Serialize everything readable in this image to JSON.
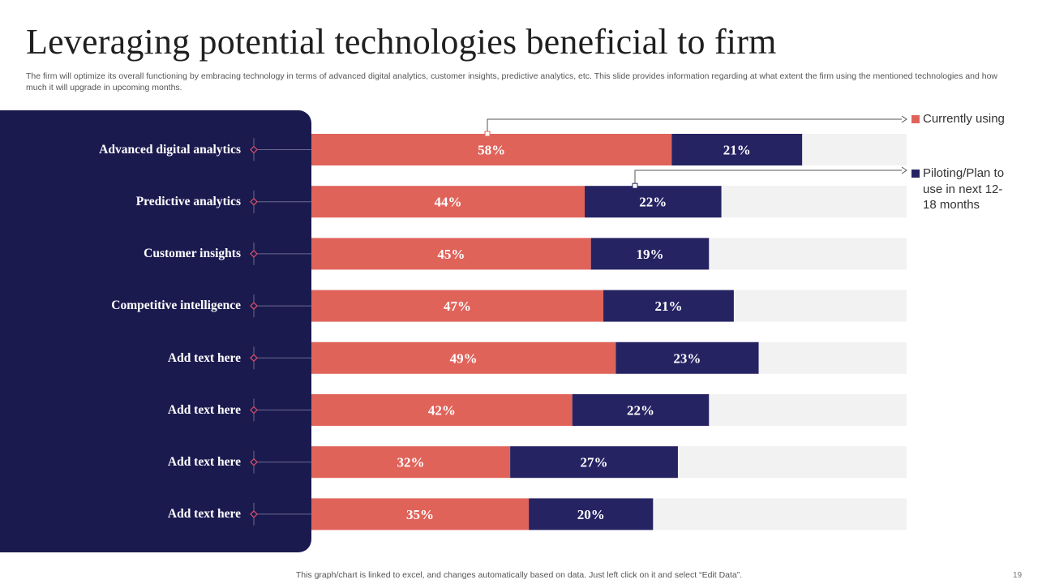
{
  "slide": {
    "title": "Leveraging potential technologies beneficial to firm",
    "subtitle": "The firm will optimize its overall functioning by embracing technology in terms of advanced digital analytics, customer insights, predictive analytics, etc. This slide provides information regarding at what extent the firm using the mentioned technologies and how much it will upgrade in upcoming months.",
    "footnote": "This graph/chart is linked to excel,  and changes automatically based on data. Just left click on it and select “Edit Data”.",
    "page_number": "19"
  },
  "colors": {
    "panel": "#1b1a4f",
    "currently": "#e0635a",
    "piloting": "#262363",
    "track": "#f2f2f2"
  },
  "chart_data": {
    "type": "bar",
    "orientation": "horizontal",
    "stacked": true,
    "categories": [
      "Advanced digital analytics",
      "Predictive analytics",
      "Customer insights",
      "Competitive intelligence",
      "Add text here",
      "Add text here",
      "Add text here",
      "Add text here"
    ],
    "series": [
      {
        "name": "Currently  using",
        "color": "#e0635a",
        "values": [
          58,
          44,
          45,
          47,
          49,
          42,
          32,
          35
        ],
        "labels": [
          "58%",
          "44%",
          "45%",
          "47%",
          "49%",
          "42%",
          "32%",
          "35%"
        ]
      },
      {
        "name": "Piloting/Plan to use in next 12-18 months",
        "color": "#262363",
        "values": [
          21,
          22,
          19,
          21,
          23,
          22,
          27,
          20
        ],
        "labels": [
          "21%",
          "22%",
          "19%",
          "21%",
          "23%",
          "22%",
          "27%",
          "20%"
        ]
      }
    ],
    "xlim": [
      0,
      100
    ],
    "legend_position": "right",
    "legend": {
      "currently_lines": [
        "Currently  using"
      ],
      "piloting_lines": [
        "Piloting/Plan to",
        "use in next 12-",
        "18 months"
      ]
    }
  }
}
